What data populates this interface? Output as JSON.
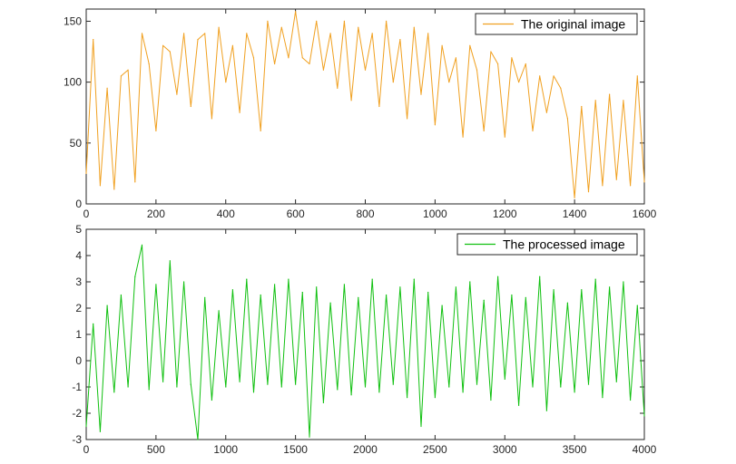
{
  "chart_data": [
    {
      "type": "line",
      "title": "",
      "xlabel": "",
      "ylabel": "",
      "xlim": [
        0,
        1600
      ],
      "ylim": [
        0,
        160
      ],
      "xticks": [
        0,
        200,
        400,
        600,
        800,
        1000,
        1200,
        1400,
        1600
      ],
      "yticks": [
        0,
        50,
        100,
        150
      ],
      "grid": false,
      "legend_position": "top-right",
      "series": [
        {
          "name": "The original image",
          "color": "#f0a020",
          "x": [
            0,
            20,
            40,
            60,
            80,
            100,
            120,
            140,
            160,
            180,
            200,
            220,
            240,
            260,
            280,
            300,
            320,
            340,
            360,
            380,
            400,
            420,
            440,
            460,
            480,
            500,
            520,
            540,
            560,
            580,
            600,
            620,
            640,
            660,
            680,
            700,
            720,
            740,
            760,
            780,
            800,
            820,
            840,
            860,
            880,
            900,
            920,
            940,
            960,
            980,
            1000,
            1020,
            1040,
            1060,
            1080,
            1100,
            1120,
            1140,
            1160,
            1180,
            1200,
            1220,
            1240,
            1260,
            1280,
            1300,
            1320,
            1340,
            1360,
            1380,
            1400,
            1420,
            1440,
            1460,
            1480,
            1500,
            1520,
            1540,
            1560,
            1580,
            1600
          ],
          "values": [
            25,
            135,
            15,
            95,
            12,
            105,
            110,
            18,
            140,
            115,
            60,
            130,
            125,
            90,
            140,
            80,
            135,
            140,
            70,
            145,
            100,
            130,
            75,
            140,
            120,
            60,
            150,
            115,
            145,
            120,
            158,
            120,
            115,
            150,
            110,
            140,
            95,
            150,
            85,
            145,
            110,
            140,
            80,
            150,
            100,
            135,
            70,
            145,
            90,
            140,
            65,
            130,
            100,
            120,
            55,
            130,
            110,
            60,
            125,
            115,
            55,
            120,
            100,
            115,
            60,
            105,
            75,
            105,
            95,
            70,
            5,
            80,
            10,
            85,
            15,
            90,
            20,
            85,
            15,
            105,
            18
          ]
        }
      ]
    },
    {
      "type": "line",
      "title": "",
      "xlabel": "",
      "ylabel": "",
      "xlim": [
        0,
        4000
      ],
      "ylim": [
        -3,
        5
      ],
      "xticks": [
        0,
        500,
        1000,
        1500,
        2000,
        2500,
        3000,
        3500,
        4000
      ],
      "yticks": [
        -3,
        -2,
        -1,
        0,
        1,
        2,
        3,
        4,
        5
      ],
      "grid": false,
      "legend_position": "top-right",
      "series": [
        {
          "name": "The processed image",
          "color": "#10c010",
          "x": [
            0,
            50,
            100,
            150,
            200,
            250,
            300,
            350,
            400,
            450,
            500,
            550,
            600,
            650,
            700,
            750,
            800,
            850,
            900,
            950,
            1000,
            1050,
            1100,
            1150,
            1200,
            1250,
            1300,
            1350,
            1400,
            1450,
            1500,
            1550,
            1600,
            1650,
            1700,
            1750,
            1800,
            1850,
            1900,
            1950,
            2000,
            2050,
            2100,
            2150,
            2200,
            2250,
            2300,
            2350,
            2400,
            2450,
            2500,
            2550,
            2600,
            2650,
            2700,
            2750,
            2800,
            2850,
            2900,
            2950,
            3000,
            3050,
            3100,
            3150,
            3200,
            3250,
            3300,
            3350,
            3400,
            3450,
            3500,
            3550,
            3600,
            3650,
            3700,
            3750,
            3800,
            3850,
            3900,
            3950,
            4000
          ],
          "values": [
            -2.5,
            1.4,
            -2.7,
            2.1,
            -1.2,
            2.5,
            -1.0,
            3.2,
            4.4,
            -1.1,
            2.9,
            -0.8,
            3.8,
            -1.0,
            3.0,
            -0.9,
            -3.0,
            2.4,
            -1.5,
            1.9,
            -1.0,
            2.7,
            -0.8,
            3.1,
            -1.2,
            2.5,
            -0.9,
            2.9,
            -1.0,
            3.1,
            -0.9,
            2.6,
            -2.9,
            2.8,
            -1.6,
            2.2,
            -1.1,
            2.9,
            -1.3,
            2.4,
            -1.0,
            3.1,
            -1.2,
            2.5,
            -0.9,
            2.8,
            -1.4,
            3.1,
            -2.5,
            2.6,
            -1.4,
            2.1,
            -1.0,
            2.8,
            -1.2,
            3.0,
            -0.9,
            2.3,
            -1.5,
            3.2,
            -0.7,
            2.5,
            -1.7,
            2.4,
            -1.0,
            3.2,
            -1.9,
            2.7,
            -1.0,
            2.2,
            -1.2,
            2.7,
            -0.9,
            3.1,
            -1.4,
            2.8,
            -0.8,
            3.0,
            -1.5,
            2.1,
            -2.1
          ]
        }
      ]
    }
  ]
}
